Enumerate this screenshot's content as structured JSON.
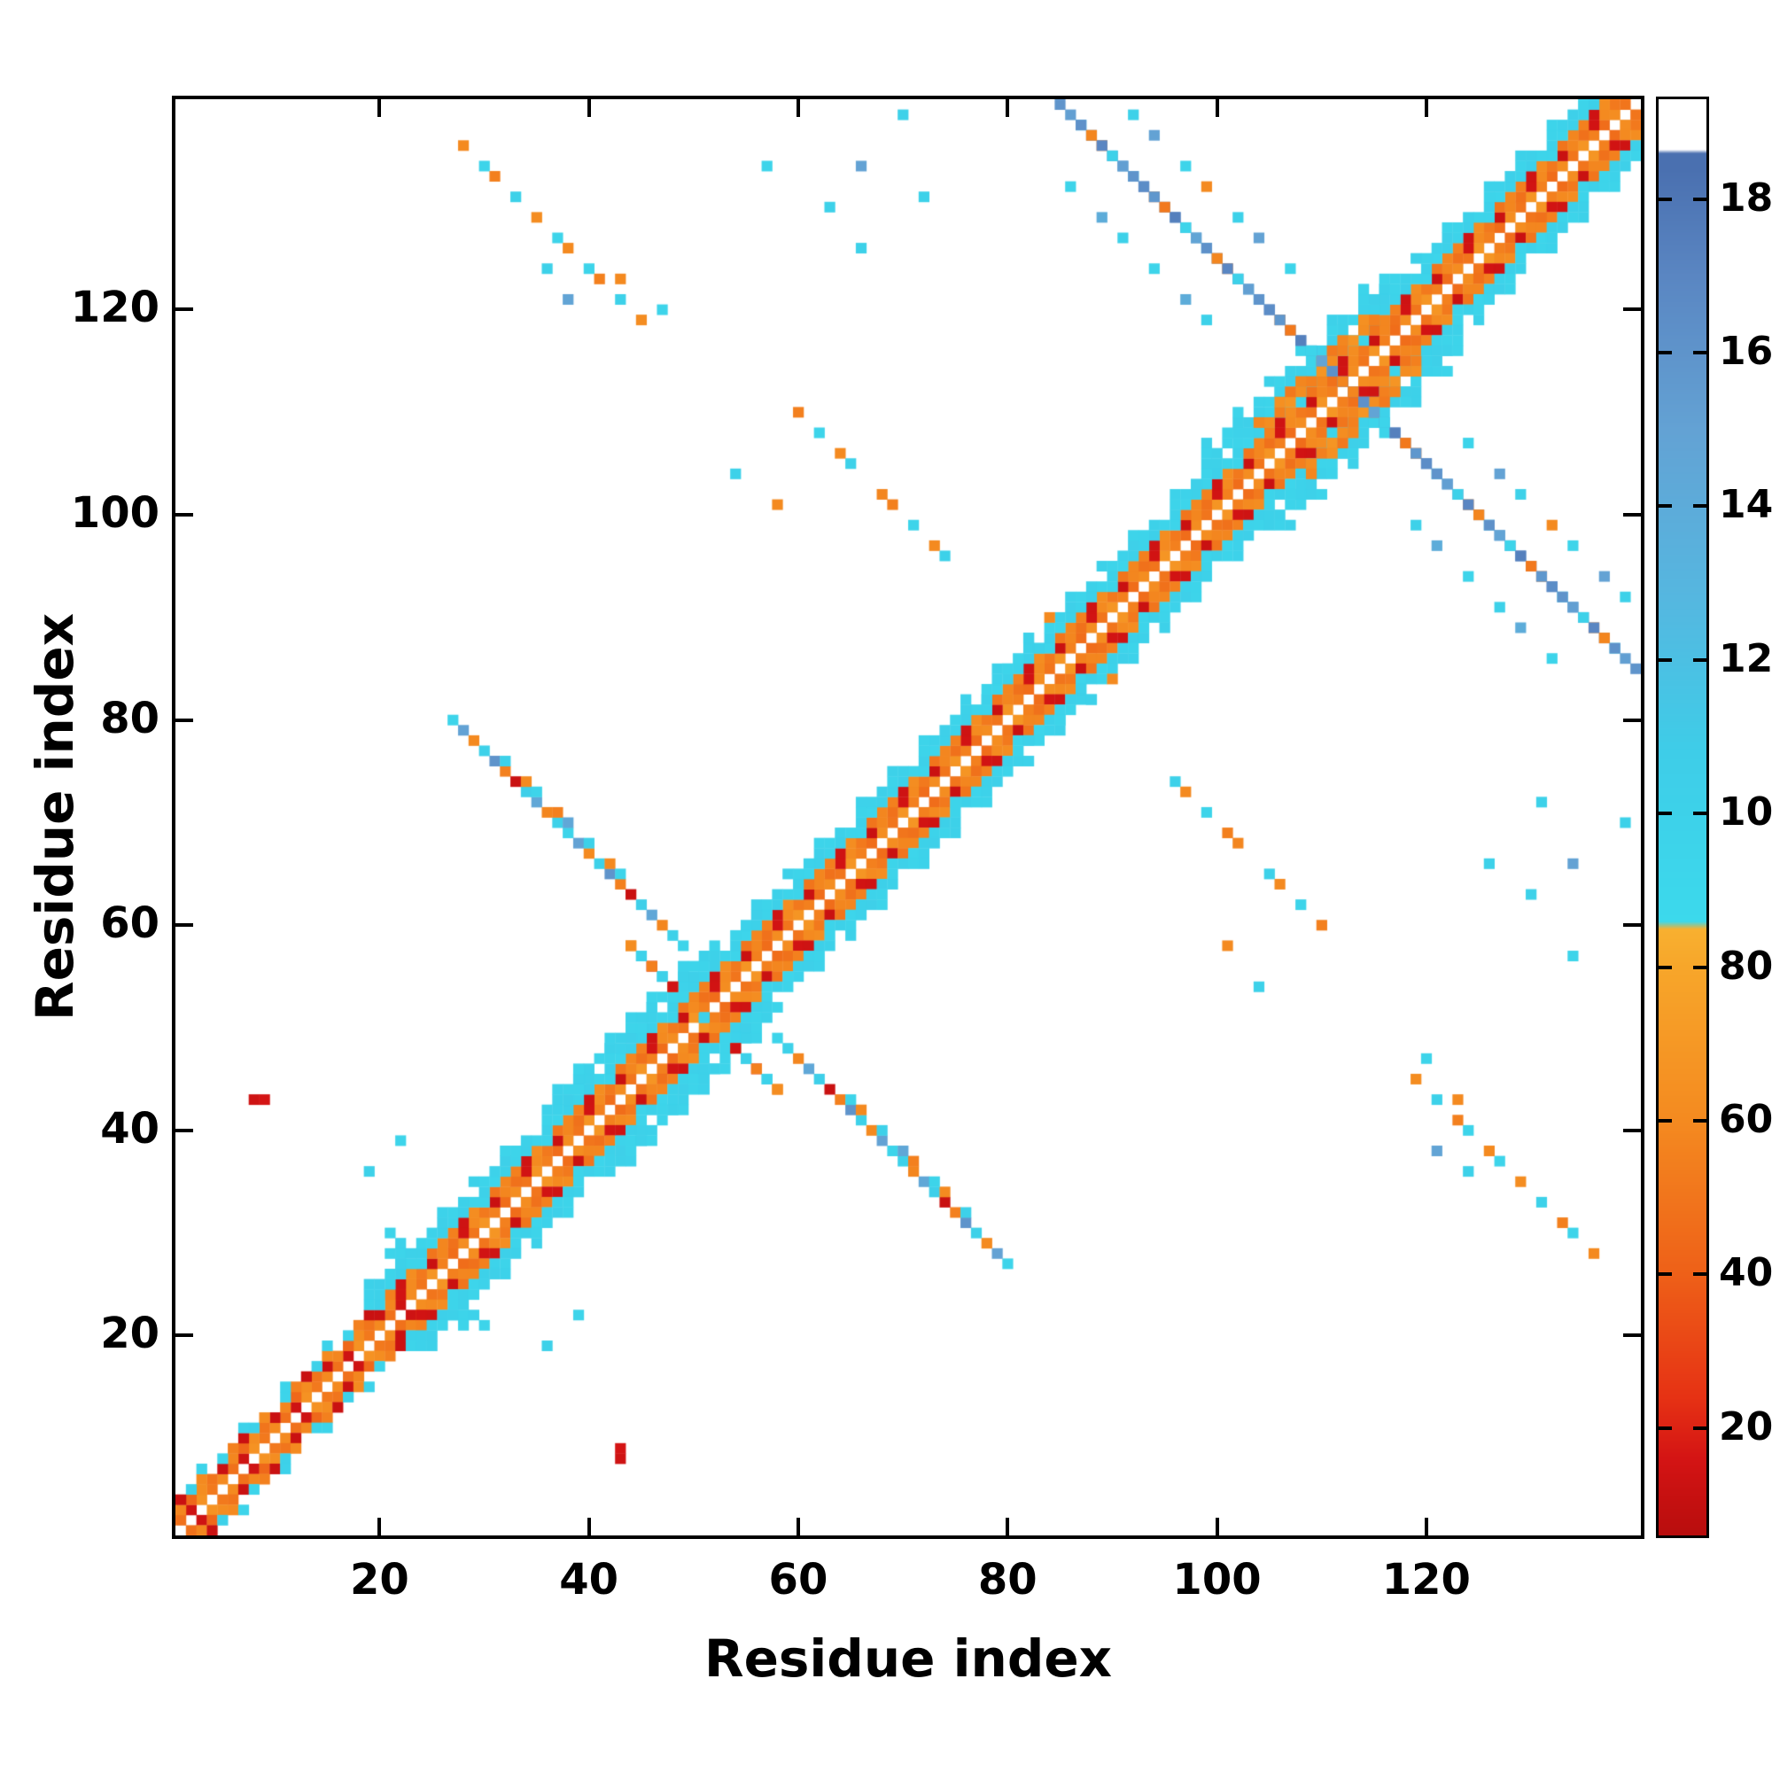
{
  "figure": {
    "xlabel": "Residue index",
    "ylabel": "Residue index"
  },
  "chart_data": {
    "type": "heatmap",
    "title": "",
    "xlabel": "Residue index",
    "ylabel": "Residue index",
    "description": "Symmetric protein residue-residue contact map, colored by value shown in colorbar",
    "n_residues": 140,
    "x_range": [
      1,
      140
    ],
    "y_range": [
      1,
      140
    ],
    "x_ticks": [
      20,
      40,
      60,
      80,
      100,
      120
    ],
    "y_ticks": [
      20,
      40,
      60,
      80,
      100,
      120
    ],
    "grid": false,
    "background": "#ffffff",
    "symmetric": true,
    "colorbar": {
      "min": 6,
      "max": 193,
      "ticks": [
        20,
        40,
        60,
        80,
        100,
        120,
        140,
        160,
        180
      ],
      "position": "right"
    },
    "colormap_stops": [
      [
        6,
        "#b80d0d"
      ],
      [
        16,
        "#d41414"
      ],
      [
        24,
        "#e63214"
      ],
      [
        40,
        "#ee6018"
      ],
      [
        60,
        "#f48a20"
      ],
      [
        80,
        "#f7a62a"
      ],
      [
        85,
        "#f8b030"
      ],
      [
        86,
        "#3cd9ec"
      ],
      [
        108,
        "#3ecde8"
      ],
      [
        128,
        "#55b7e0"
      ],
      [
        150,
        "#63a2d4"
      ],
      [
        170,
        "#5a86c2"
      ],
      [
        184,
        "#4a70b0"
      ],
      [
        186,
        "#4a70b0"
      ],
      [
        186.5,
        "#ffffff"
      ],
      [
        193,
        "#ffffff"
      ]
    ],
    "diagonal_segments": [
      {
        "from": 1,
        "to": 24,
        "offsets": [
          {
            "d": 1,
            "vals": [
              60,
              48,
              14,
              66,
              52
            ]
          },
          {
            "d": 2,
            "vals": [
              50,
              12,
              58,
              44,
              62
            ]
          },
          {
            "d": 3,
            "vals": [
              0,
              95,
              55,
              12,
              100,
              60
            ]
          },
          {
            "d": 4,
            "vals": [
              0,
              0,
              98,
              0,
              0,
              0,
              95,
              0
            ]
          }
        ]
      },
      {
        "from": 24,
        "to": 140,
        "offsets": [
          {
            "d": 1,
            "vals": [
              62,
              50,
              68,
              55,
              46
            ]
          },
          {
            "d": 2,
            "vals": [
              15,
              60,
              52,
              12,
              58,
              48
            ]
          },
          {
            "d": 3,
            "vals": [
              55,
              14,
              62,
              95,
              50,
              58
            ]
          },
          {
            "d": 4,
            "vals": [
              100,
              97,
              102,
              96,
              100,
              94
            ]
          },
          {
            "d": 5,
            "vals": [
              98,
              103,
              96,
              100,
              0,
              95
            ]
          },
          {
            "d": 6,
            "vals": [
              0,
              100,
              0,
              0,
              96,
              0,
              0,
              0,
              98,
              0
            ]
          }
        ]
      },
      {
        "from": 43,
        "to": 57,
        "offsets": [
          {
            "d": 6,
            "vals": [
              100,
              96,
              101
            ]
          },
          {
            "d": 7,
            "vals": [
              0,
              98,
              0,
              95,
              0,
              0,
              97
            ]
          }
        ]
      },
      {
        "from": 106,
        "to": 123,
        "offsets": [
          {
            "d": 6,
            "vals": [
              100,
              95,
              99,
              103
            ]
          },
          {
            "d": 7,
            "vals": [
              97,
              0,
              95,
              100,
              0
            ]
          },
          {
            "d": 8,
            "vals": [
              0,
              100,
              0,
              0,
              95,
              0
            ]
          }
        ]
      },
      {
        "from": 109,
        "to": 119,
        "offsets": [
          {
            "d": 4,
            "vals": [
              62,
              55,
              68
            ]
          },
          {
            "d": 5,
            "vals": [
              58,
              0,
              64,
              52
            ]
          }
        ]
      }
    ],
    "antidiagonal_segments": [
      {
        "x0": 44,
        "y0": 58,
        "len": 15,
        "vals": [
          60,
          95,
          15,
          100,
          55,
          98,
          62,
          100
        ]
      },
      {
        "x0": 27,
        "y0": 80,
        "len": 23,
        "vals": [
          95,
          150,
          60,
          100,
          160,
          55,
          12,
          105,
          145,
          58,
          100
        ]
      },
      {
        "x0": 32,
        "y0": 76,
        "len": 12,
        "vals": [
          100,
          0,
          60,
          95,
          0,
          55,
          145,
          0
        ]
      },
      {
        "x0": 85,
        "y0": 140,
        "len": 54,
        "vals": [
          160,
          152,
          100,
          170,
          58,
          162,
          148,
          95,
          174,
          52,
          158,
          165
        ]
      },
      {
        "x0": 91,
        "y0": 140,
        "len": 18,
        "vals": [
          0,
          100,
          0,
          150,
          0,
          0,
          95,
          0,
          60,
          0
        ]
      },
      {
        "x0": 85,
        "y0": 133,
        "len": 15,
        "vals": [
          0,
          95,
          0,
          0,
          140,
          0,
          100,
          0
        ]
      },
      {
        "x0": 28,
        "y0": 136,
        "len": 19,
        "vals": [
          60,
          0,
          95,
          55,
          0,
          100,
          0,
          62,
          0,
          96
        ]
      },
      {
        "x0": 60,
        "y0": 110,
        "len": 17,
        "vals": [
          55,
          0,
          95,
          0,
          60,
          100,
          0,
          0,
          58
        ]
      }
    ],
    "points": [
      [
        8,
        43,
        14
      ],
      [
        9,
        43,
        16
      ],
      [
        27,
        22,
        100
      ],
      [
        28,
        21,
        95
      ],
      [
        28,
        23,
        100
      ],
      [
        29,
        22,
        98
      ],
      [
        30,
        21,
        96
      ],
      [
        36,
        19,
        100
      ],
      [
        39,
        22,
        96
      ],
      [
        63,
        130,
        100
      ],
      [
        66,
        126,
        100
      ],
      [
        57,
        134,
        95
      ],
      [
        70,
        139,
        100
      ],
      [
        36,
        124,
        100
      ],
      [
        38,
        121,
        148
      ],
      [
        82,
        78,
        100
      ],
      [
        85,
        80,
        96
      ],
      [
        87,
        83,
        100
      ],
      [
        88,
        82,
        100
      ],
      [
        90,
        84,
        60
      ],
      [
        101,
        58,
        60
      ],
      [
        104,
        54,
        100
      ],
      [
        131,
        72,
        100
      ],
      [
        134,
        66,
        150
      ],
      [
        120,
        47,
        95
      ],
      [
        123,
        43,
        60
      ]
    ]
  }
}
